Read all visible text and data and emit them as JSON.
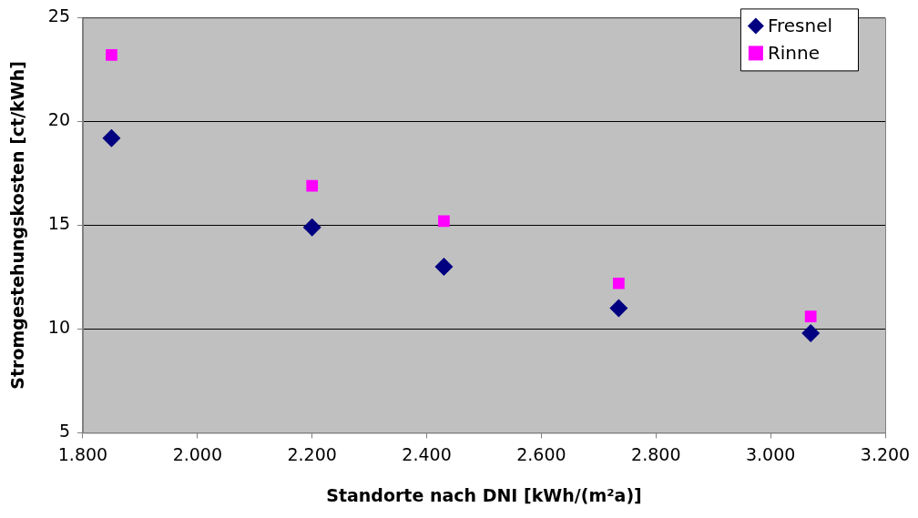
{
  "chart_data": {
    "type": "scatter",
    "xlabel": "Standorte nach DNI [kWh/(m²a)]",
    "ylabel": "Stromgestehungskosten [ct/kWh]",
    "x": [
      1850,
      2200,
      2430,
      2735,
      3070
    ],
    "series": [
      {
        "name": "Fresnel",
        "color": "#000080",
        "marker": "diamond",
        "values": [
          19.2,
          14.9,
          13.0,
          11.0,
          9.8
        ]
      },
      {
        "name": "Rinne",
        "color": "#ff00ff",
        "marker": "square",
        "values": [
          23.2,
          16.9,
          15.2,
          12.2,
          10.6
        ]
      }
    ],
    "xlim": [
      1800,
      3200
    ],
    "xticks": [
      {
        "value": 1800,
        "label": "1.800"
      },
      {
        "value": 2000,
        "label": "2.000"
      },
      {
        "value": 2200,
        "label": "2.200"
      },
      {
        "value": 2400,
        "label": "2.400"
      },
      {
        "value": 2600,
        "label": "2.600"
      },
      {
        "value": 2800,
        "label": "2.800"
      },
      {
        "value": 3000,
        "label": "3.000"
      },
      {
        "value": 3200,
        "label": "3.200"
      }
    ],
    "ylim": [
      5,
      25
    ],
    "yticks": [
      5,
      10,
      15,
      20,
      25
    ],
    "grid": "y",
    "legend": "top right"
  }
}
